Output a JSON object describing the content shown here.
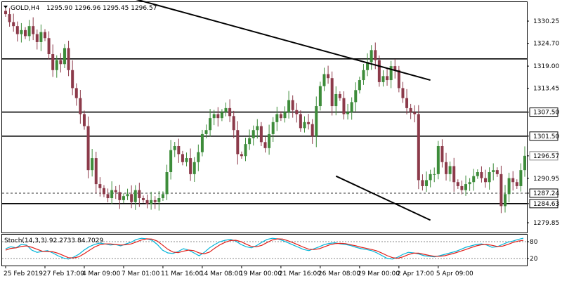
{
  "header": {
    "symbol": "GOLD,H4",
    "ohlc": "1295.90 1296.96 1295.45 1296.57"
  },
  "colors": {
    "bull": "#3d8c3a",
    "bear": "#8c3a4a",
    "line": "#000000",
    "stoch_main": "#00b4d8",
    "stoch_signal": "#e0201a",
    "grid_dash": "#888888"
  },
  "chart_data": [
    {
      "type": "candlestick",
      "title": "GOLD,H4",
      "ylim": [
        1277.4,
        1335.0
      ],
      "y_ticks": [
        "1330.25",
        "1324.70",
        "1319.00",
        "1313.45",
        "1307.50",
        "1301.50",
        "1296.57",
        "1290.95",
        "1287.24",
        "1284.63",
        "1279.85"
      ],
      "marked_levels": [
        "1320.81",
        "1307.50",
        "1301.50",
        "1287.24",
        "1284.63"
      ],
      "current_price": "1296.57",
      "horizontal_lines": [
        {
          "value": 1320.81,
          "style": "solid"
        },
        {
          "value": 1307.5,
          "style": "solid"
        },
        {
          "value": 1301.5,
          "style": "solid"
        },
        {
          "value": 1287.24,
          "style": "dashed"
        },
        {
          "value": 1284.63,
          "style": "solid"
        }
      ],
      "trendlines": [
        {
          "from": [
            32,
            1336.0
          ],
          "to": [
            108,
            1315.5
          ]
        },
        {
          "from": [
            84,
            1291.5
          ],
          "to": [
            108,
            1280.5
          ]
        }
      ],
      "x_labels": [
        {
          "bar": 0,
          "text": "25 Feb 2019"
        },
        {
          "bar": 10,
          "text": "27 Feb 17:00"
        },
        {
          "bar": 20,
          "text": "4 Mar 09:00"
        },
        {
          "bar": 30,
          "text": "7 Mar 01:00"
        },
        {
          "bar": 40,
          "text": "11 Mar 16:00"
        },
        {
          "bar": 50,
          "text": "14 Mar 08:00"
        },
        {
          "bar": 60,
          "text": "19 Mar 00:00"
        },
        {
          "bar": 70,
          "text": "21 Mar 16:00"
        },
        {
          "bar": 80,
          "text": "26 Mar 08:00"
        },
        {
          "bar": 90,
          "text": "29 Mar 00:00"
        },
        {
          "bar": 100,
          "text": "2 Apr 17:00"
        },
        {
          "bar": 110,
          "text": "5 Apr 09:00"
        }
      ],
      "close_path": [
        1332.0,
        1330.0,
        1329.0,
        1327.0,
        1328.0,
        1326.5,
        1329.0,
        1327.0,
        1325.0,
        1327.5,
        1326.0,
        1322.0,
        1318.0,
        1320.5,
        1319.5,
        1323.5,
        1318.0,
        1313.5,
        1311.0,
        1307.0,
        1304.0,
        1293.0,
        1296.0,
        1289.5,
        1288.5,
        1287.0,
        1286.0,
        1288.0,
        1287.5,
        1285.5,
        1286.5,
        1287.0,
        1285.0,
        1288.0,
        1286.0,
        1285.5,
        1284.5,
        1285.5,
        1285.0,
        1286.0,
        1287.0,
        1292.5,
        1298.0,
        1299.0,
        1297.0,
        1295.0,
        1296.0,
        1292.0,
        1295.0,
        1297.5,
        1302.0,
        1303.0,
        1306.0,
        1307.0,
        1306.0,
        1307.5,
        1308.5,
        1306.5,
        1303.0,
        1297.0,
        1296.5,
        1299.5,
        1301.0,
        1303.0,
        1304.0,
        1300.0,
        1298.5,
        1302.0,
        1305.0,
        1307.0,
        1306.0,
        1307.5,
        1310.5,
        1308.0,
        1307.0,
        1303.5,
        1305.0,
        1304.5,
        1301.5,
        1309.0,
        1314.0,
        1317.0,
        1316.0,
        1309.0,
        1312.0,
        1311.0,
        1307.0,
        1307.5,
        1310.0,
        1313.0,
        1315.5,
        1318.0,
        1320.0,
        1323.0,
        1320.5,
        1315.0,
        1316.5,
        1315.5,
        1319.0,
        1318.0,
        1313.5,
        1311.0,
        1308.5,
        1307.5,
        1307.0,
        1290.5,
        1289.0,
        1290.5,
        1292.0,
        1292.0,
        1299.0,
        1295.0,
        1292.0,
        1294.0,
        1290.0,
        1289.0,
        1288.0,
        1289.5,
        1290.0,
        1291.5,
        1292.5,
        1291.0,
        1290.0,
        1292.5,
        1293.0,
        1292.0,
        1284.0,
        1287.0,
        1291.0,
        1290.0,
        1289.0,
        1293.0,
        1296.57
      ]
    },
    {
      "type": "line",
      "title": "Stoch(14,3,3) 92.2733 84.7029",
      "ylim": [
        0,
        100
      ],
      "y_ticks": [
        "80",
        "20"
      ],
      "series": [
        {
          "values": [
            55,
            62,
            58,
            70,
            68,
            50,
            42,
            45,
            48,
            40,
            30,
            22,
            18,
            25,
            35,
            50,
            62,
            70,
            75,
            72,
            68,
            70,
            65,
            72,
            78,
            88,
            92,
            90,
            85,
            70,
            50,
            40,
            38,
            45,
            55,
            50,
            40,
            30,
            42,
            58,
            70,
            80,
            85,
            88,
            82,
            70,
            62,
            58,
            66,
            78,
            88,
            92,
            90,
            84,
            76,
            68,
            60,
            52,
            48,
            55,
            62,
            70,
            74,
            76,
            72,
            70,
            66,
            60,
            55,
            52,
            48,
            40,
            30,
            20,
            18,
            25,
            35,
            42,
            40,
            36,
            30,
            28,
            26,
            30,
            35,
            40,
            45,
            52,
            60,
            65,
            70,
            72,
            68,
            60,
            62,
            70,
            78,
            82,
            88,
            92.27
          ]
        },
        {
          "values": [
            50,
            56,
            58,
            63,
            65,
            60,
            53,
            46,
            45,
            44,
            39,
            31,
            23,
            22,
            26,
            37,
            49,
            61,
            69,
            72,
            72,
            70,
            68,
            69,
            72,
            79,
            86,
            90,
            89,
            82,
            68,
            53,
            43,
            41,
            46,
            50,
            48,
            40,
            37,
            43,
            57,
            69,
            78,
            84,
            85,
            80,
            71,
            63,
            62,
            67,
            77,
            86,
            90,
            89,
            83,
            76,
            68,
            60,
            53,
            52,
            55,
            62,
            69,
            73,
            74,
            73,
            69,
            65,
            60,
            56,
            52,
            47,
            39,
            30,
            23,
            21,
            26,
            34,
            39,
            39,
            35,
            31,
            28,
            28,
            30,
            35,
            40,
            46,
            52,
            59,
            65,
            69,
            70,
            67,
            63,
            64,
            70,
            77,
            82,
            84.7
          ]
        }
      ]
    }
  ]
}
